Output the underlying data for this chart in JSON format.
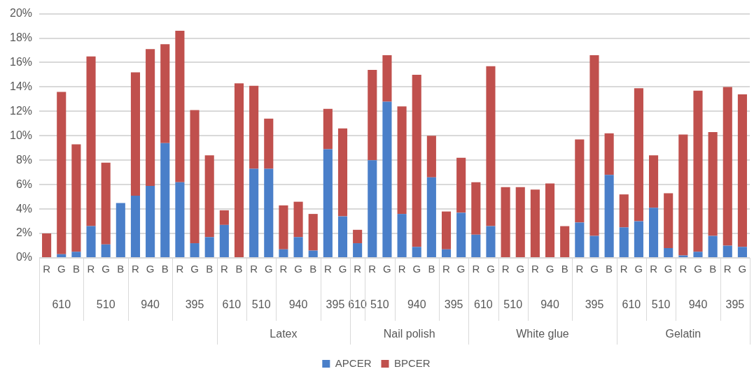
{
  "chart_data": {
    "type": "bar",
    "stacked": true,
    "grid": "y",
    "legend": "bottom",
    "categories": [
      "R",
      "G",
      "B",
      "R",
      "G",
      "B",
      "R",
      "G",
      "B",
      "R",
      "G",
      "B",
      "R",
      "B",
      "R",
      "G",
      "R",
      "G",
      "B",
      "R",
      "G",
      "R",
      "R",
      "G",
      "R",
      "G",
      "B",
      "R",
      "G",
      "R",
      "G",
      "R",
      "G",
      "R",
      "G",
      "B",
      "R",
      "G",
      "B",
      "R",
      "G",
      "R",
      "G",
      "R",
      "G",
      "B",
      "R",
      "G"
    ],
    "series": [
      {
        "name": "APCER",
        "color": "#4a7fc9",
        "values": [
          0,
          0.3,
          0.5,
          2.6,
          1.1,
          4.5,
          5.1,
          5.9,
          9.4,
          6.2,
          1.2,
          1.7,
          2.7,
          0,
          7.3,
          7.3,
          0.7,
          1.7,
          0.6,
          8.9,
          3.4,
          1.2,
          8.0,
          12.8,
          3.6,
          0.9,
          6.6,
          0.7,
          3.7,
          1.9,
          2.6,
          0,
          0,
          0,
          0,
          0,
          2.9,
          1.8,
          6.8,
          2.5,
          3.0,
          4.1,
          0.8,
          0.2,
          0.5,
          1.8,
          1.0,
          0.9
        ]
      },
      {
        "name": "BPCER",
        "color": "#c0504d",
        "values": [
          2.0,
          13.3,
          8.8,
          13.9,
          6.7,
          0,
          10.1,
          11.2,
          8.1,
          12.4,
          10.9,
          6.7,
          1.2,
          14.3,
          6.8,
          4.1,
          3.6,
          2.9,
          3.0,
          3.3,
          7.2,
          1.1,
          7.4,
          3.8,
          8.8,
          14.1,
          3.4,
          3.1,
          4.5,
          4.3,
          13.1,
          5.8,
          5.8,
          5.6,
          6.1,
          2.6,
          6.8,
          14.8,
          3.4,
          2.7,
          10.9,
          4.3,
          4.5,
          9.9,
          13.2,
          8.5,
          13.0,
          12.5
        ]
      }
    ],
    "ylim": [
      0,
      20
    ],
    "yticks": [
      {
        "value": 0,
        "label": "0%"
      },
      {
        "value": 2,
        "label": "2%"
      },
      {
        "value": 4,
        "label": "4%"
      },
      {
        "value": 6,
        "label": "6%"
      },
      {
        "value": 8,
        "label": "8%"
      },
      {
        "value": 10,
        "label": "10%"
      },
      {
        "value": 12,
        "label": "12%"
      },
      {
        "value": 14,
        "label": "14%"
      },
      {
        "value": 16,
        "label": "16%"
      },
      {
        "value": 18,
        "label": "18%"
      },
      {
        "value": 20,
        "label": "20%"
      }
    ],
    "annotations": [
      "610",
      "510",
      "940",
      "395",
      "610",
      "510",
      "940",
      "395",
      "610",
      "510",
      "940",
      "395",
      "610",
      "510",
      "940",
      "395",
      "610",
      "510",
      "940",
      "395",
      "Latex",
      "Nail polish",
      "White glue",
      "Gelatin"
    ]
  }
}
